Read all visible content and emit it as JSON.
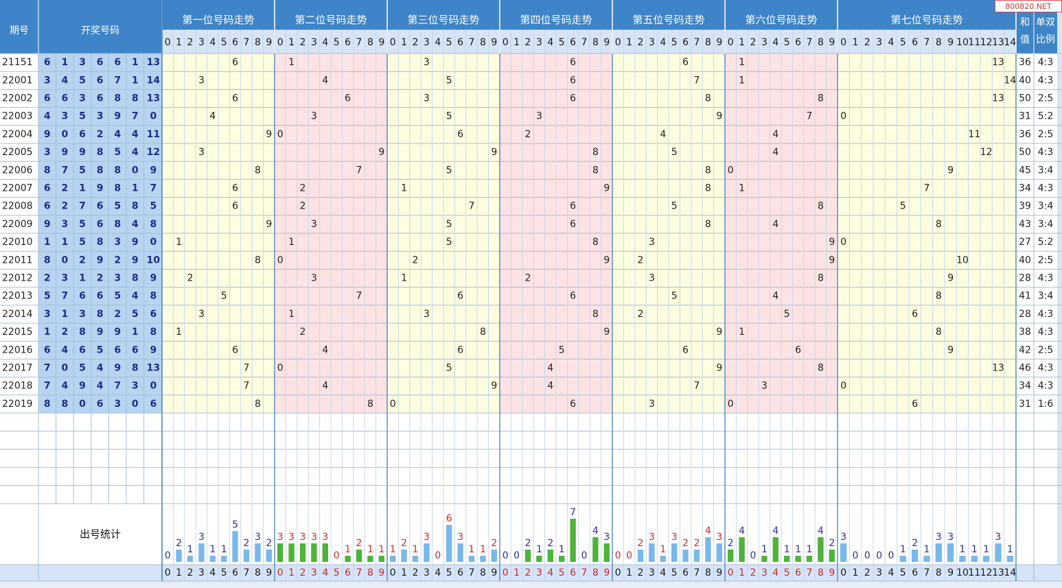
{
  "watermark": "800820.NET",
  "headers": {
    "issue": "期号",
    "draw": "开奖号码",
    "positions": [
      "第一位号码走势",
      "第二位号码走势",
      "第三位号码走势",
      "第四位号码走势",
      "第五位号码走势",
      "第六位号码走势",
      "第七位号码走势"
    ],
    "sum": [
      "和",
      "值"
    ],
    "ratio": [
      "单双",
      "比例"
    ],
    "stats": "出号统计"
  },
  "colors": {
    "header_bg": "#3e84c8",
    "label_bg": "#d6e4f5",
    "draw_bg": "#b9d4f0",
    "draw_text": "#1c2f88",
    "zone_yellow": "#fdfde0",
    "zone_pink": "#fde3e3",
    "grid": "#a4bdd9",
    "bar_blue": "#79b8ea",
    "bar_green": "#4fb33a",
    "num_blue": "#2b2c9c",
    "num_red": "#d0252b",
    "num_green": "#2f8a2a"
  },
  "chart_data": {
    "type": "table",
    "position_digit_ranges": [
      [
        0,
        9
      ],
      [
        0,
        9
      ],
      [
        0,
        9
      ],
      [
        0,
        9
      ],
      [
        0,
        9
      ],
      [
        0,
        9
      ],
      [
        0,
        14
      ]
    ],
    "rows": [
      {
        "issue": "21151",
        "draw": [
          6,
          1,
          3,
          6,
          6,
          1,
          13
        ],
        "sum": 36,
        "ratio": "4:3"
      },
      {
        "issue": "22001",
        "draw": [
          3,
          4,
          5,
          6,
          7,
          1,
          14
        ],
        "sum": 40,
        "ratio": "4:3"
      },
      {
        "issue": "22002",
        "draw": [
          6,
          6,
          3,
          6,
          8,
          8,
          13
        ],
        "sum": 50,
        "ratio": "2:5"
      },
      {
        "issue": "22003",
        "draw": [
          4,
          3,
          5,
          3,
          9,
          7,
          0
        ],
        "sum": 31,
        "ratio": "5:2"
      },
      {
        "issue": "22004",
        "draw": [
          9,
          0,
          6,
          2,
          4,
          4,
          11
        ],
        "sum": 36,
        "ratio": "2:5"
      },
      {
        "issue": "22005",
        "draw": [
          3,
          9,
          9,
          8,
          5,
          4,
          12
        ],
        "sum": 50,
        "ratio": "4:3"
      },
      {
        "issue": "22006",
        "draw": [
          8,
          7,
          5,
          8,
          8,
          0,
          9
        ],
        "sum": 45,
        "ratio": "3:4"
      },
      {
        "issue": "22007",
        "draw": [
          6,
          2,
          1,
          9,
          8,
          1,
          7
        ],
        "sum": 34,
        "ratio": "4:3"
      },
      {
        "issue": "22008",
        "draw": [
          6,
          2,
          7,
          6,
          5,
          8,
          5
        ],
        "sum": 39,
        "ratio": "3:4"
      },
      {
        "issue": "22009",
        "draw": [
          9,
          3,
          5,
          6,
          8,
          4,
          8
        ],
        "sum": 43,
        "ratio": "3:4"
      },
      {
        "issue": "22010",
        "draw": [
          1,
          1,
          5,
          8,
          3,
          9,
          0
        ],
        "sum": 27,
        "ratio": "5:2"
      },
      {
        "issue": "22011",
        "draw": [
          8,
          0,
          2,
          9,
          2,
          9,
          10
        ],
        "sum": 40,
        "ratio": "2:5"
      },
      {
        "issue": "22012",
        "draw": [
          2,
          3,
          1,
          2,
          3,
          8,
          9
        ],
        "sum": 28,
        "ratio": "4:3"
      },
      {
        "issue": "22013",
        "draw": [
          5,
          7,
          6,
          6,
          5,
          4,
          8
        ],
        "sum": 41,
        "ratio": "3:4"
      },
      {
        "issue": "22014",
        "draw": [
          3,
          1,
          3,
          8,
          2,
          5,
          6
        ],
        "sum": 28,
        "ratio": "4:3"
      },
      {
        "issue": "22015",
        "draw": [
          1,
          2,
          8,
          9,
          9,
          1,
          8
        ],
        "sum": 38,
        "ratio": "4:3"
      },
      {
        "issue": "22016",
        "draw": [
          6,
          4,
          6,
          5,
          6,
          6,
          9
        ],
        "sum": 42,
        "ratio": "2:5"
      },
      {
        "issue": "22017",
        "draw": [
          7,
          0,
          5,
          4,
          9,
          8,
          13
        ],
        "sum": 46,
        "ratio": "4:3"
      },
      {
        "issue": "22018",
        "draw": [
          7,
          4,
          9,
          4,
          7,
          3,
          0
        ],
        "sum": 34,
        "ratio": "4:3"
      },
      {
        "issue": "22019",
        "draw": [
          8,
          8,
          0,
          6,
          3,
          0,
          6
        ],
        "sum": 31,
        "ratio": "1:6"
      }
    ],
    "stats": [
      [
        0,
        2,
        1,
        3,
        1,
        1,
        5,
        2,
        3,
        2
      ],
      [
        3,
        3,
        3,
        3,
        3,
        0,
        1,
        2,
        1,
        1
      ],
      [
        1,
        2,
        1,
        3,
        0,
        6,
        3,
        1,
        1,
        2
      ],
      [
        0,
        0,
        2,
        1,
        2,
        1,
        7,
        0,
        4,
        3
      ],
      [
        0,
        0,
        2,
        3,
        1,
        3,
        2,
        2,
        4,
        3
      ],
      [
        2,
        4,
        0,
        1,
        4,
        1,
        1,
        1,
        4,
        2
      ],
      [
        3,
        0,
        0,
        0,
        0,
        1,
        2,
        1,
        3,
        3,
        1,
        1,
        1,
        3,
        1
      ]
    ]
  }
}
